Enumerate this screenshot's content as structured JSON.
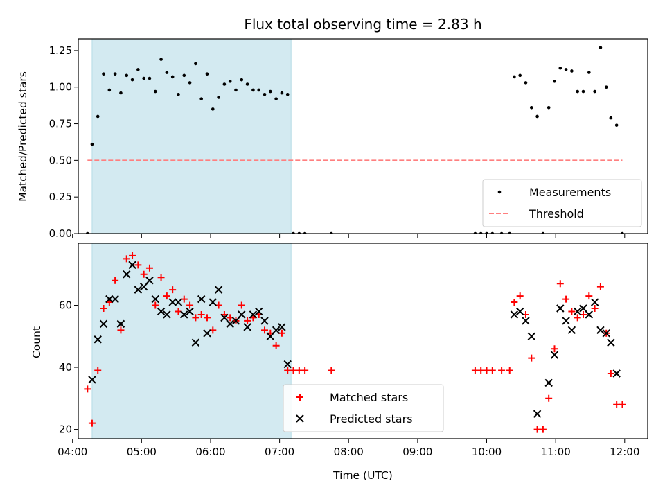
{
  "chart_data": [
    {
      "type": "scatter",
      "title": "Flux total observing time = 2.83 h",
      "xlabel": "",
      "ylabel": "Matched/Predicted stars",
      "xlim": [
        "04:05",
        "12:20"
      ],
      "ylim": [
        0,
        1.33
      ],
      "yticks": [
        "0.00",
        "0.25",
        "0.50",
        "0.75",
        "1.00",
        "1.25"
      ],
      "shaded_region": {
        "from": "04:17",
        "to": "07:10",
        "color": "#d3eaf1"
      },
      "grid": false,
      "legend": "lower-right",
      "series": [
        {
          "name": "Measurements",
          "marker": "dot",
          "color": "#000000",
          "points": [
            [
              "04:13",
              0.0
            ],
            [
              "04:17",
              0.61
            ],
            [
              "04:22",
              0.8
            ],
            [
              "04:27",
              1.09
            ],
            [
              "04:32",
              0.98
            ],
            [
              "04:37",
              1.09
            ],
            [
              "04:42",
              0.96
            ],
            [
              "04:47",
              1.08
            ],
            [
              "04:52",
              1.05
            ],
            [
              "04:57",
              1.12
            ],
            [
              "05:02",
              1.06
            ],
            [
              "05:07",
              1.06
            ],
            [
              "05:12",
              0.97
            ],
            [
              "05:17",
              1.19
            ],
            [
              "05:22",
              1.1
            ],
            [
              "05:27",
              1.07
            ],
            [
              "05:32",
              0.95
            ],
            [
              "05:37",
              1.08
            ],
            [
              "05:42",
              1.03
            ],
            [
              "05:47",
              1.16
            ],
            [
              "05:52",
              0.92
            ],
            [
              "05:57",
              1.09
            ],
            [
              "06:02",
              0.85
            ],
            [
              "06:07",
              0.93
            ],
            [
              "06:12",
              1.02
            ],
            [
              "06:17",
              1.04
            ],
            [
              "06:22",
              0.98
            ],
            [
              "06:27",
              1.05
            ],
            [
              "06:32",
              1.02
            ],
            [
              "06:37",
              0.98
            ],
            [
              "06:42",
              0.98
            ],
            [
              "06:47",
              0.95
            ],
            [
              "06:52",
              0.97
            ],
            [
              "06:57",
              0.92
            ],
            [
              "07:02",
              0.96
            ],
            [
              "07:07",
              0.95
            ],
            [
              "07:12",
              0.0
            ],
            [
              "07:17",
              0.0
            ],
            [
              "07:22",
              0.0
            ],
            [
              "07:45",
              0.0
            ],
            [
              "09:50",
              0.0
            ],
            [
              "09:55",
              0.0
            ],
            [
              "10:00",
              0.0
            ],
            [
              "10:05",
              0.0
            ],
            [
              "10:13",
              0.0
            ],
            [
              "10:20",
              0.0
            ],
            [
              "10:24",
              1.07
            ],
            [
              "10:29",
              1.08
            ],
            [
              "10:34",
              1.03
            ],
            [
              "10:39",
              0.86
            ],
            [
              "10:44",
              0.8
            ],
            [
              "10:49",
              0.0
            ],
            [
              "10:54",
              0.86
            ],
            [
              "10:59",
              1.04
            ],
            [
              "11:04",
              1.13
            ],
            [
              "11:09",
              1.12
            ],
            [
              "11:14",
              1.11
            ],
            [
              "11:19",
              0.97
            ],
            [
              "11:24",
              0.97
            ],
            [
              "11:29",
              1.1
            ],
            [
              "11:34",
              0.97
            ],
            [
              "11:39",
              1.27
            ],
            [
              "11:44",
              1.0
            ],
            [
              "11:48",
              0.79
            ],
            [
              "11:53",
              0.74
            ],
            [
              "11:58",
              0.0
            ]
          ]
        },
        {
          "name": "Threshold",
          "type": "line",
          "style": "dashed",
          "color": "#ff7f7f",
          "points": [
            [
              "04:13",
              0.5
            ],
            [
              "11:58",
              0.5
            ]
          ]
        }
      ]
    },
    {
      "type": "scatter",
      "title": "",
      "xlabel": "Time (UTC)",
      "ylabel": "Count",
      "xlim": [
        "04:05",
        "12:20"
      ],
      "ylim": [
        17,
        80
      ],
      "yticks": [
        "20",
        "40",
        "60"
      ],
      "xticks": [
        "04:00",
        "05:00",
        "06:00",
        "07:00",
        "08:00",
        "09:00",
        "10:00",
        "11:00",
        "12:00"
      ],
      "shaded_region": {
        "from": "04:17",
        "to": "07:10",
        "color": "#d3eaf1"
      },
      "grid": false,
      "legend": "lower-center",
      "series": [
        {
          "name": "Matched stars",
          "marker": "plus",
          "color": "#ff0000",
          "points": [
            [
              "04:13",
              33
            ],
            [
              "04:17",
              22
            ],
            [
              "04:22",
              39
            ],
            [
              "04:27",
              59
            ],
            [
              "04:32",
              61
            ],
            [
              "04:37",
              68
            ],
            [
              "04:42",
              52
            ],
            [
              "04:47",
              75
            ],
            [
              "04:52",
              76
            ],
            [
              "04:57",
              73
            ],
            [
              "05:02",
              70
            ],
            [
              "05:07",
              72
            ],
            [
              "05:12",
              60
            ],
            [
              "05:17",
              69
            ],
            [
              "05:22",
              63
            ],
            [
              "05:27",
              65
            ],
            [
              "05:32",
              58
            ],
            [
              "05:37",
              62
            ],
            [
              "05:42",
              60
            ],
            [
              "05:47",
              56
            ],
            [
              "05:52",
              57
            ],
            [
              "05:57",
              56
            ],
            [
              "06:02",
              52
            ],
            [
              "06:07",
              60
            ],
            [
              "06:12",
              57
            ],
            [
              "06:17",
              56
            ],
            [
              "06:22",
              55
            ],
            [
              "06:27",
              60
            ],
            [
              "06:32",
              55
            ],
            [
              "06:37",
              56
            ],
            [
              "06:42",
              57
            ],
            [
              "06:47",
              52
            ],
            [
              "06:52",
              51
            ],
            [
              "06:57",
              47
            ],
            [
              "07:02",
              51
            ],
            [
              "07:07",
              39
            ],
            [
              "07:12",
              39
            ],
            [
              "07:17",
              39
            ],
            [
              "07:22",
              39
            ],
            [
              "07:45",
              39
            ],
            [
              "09:50",
              39
            ],
            [
              "09:55",
              39
            ],
            [
              "10:00",
              39
            ],
            [
              "10:05",
              39
            ],
            [
              "10:13",
              39
            ],
            [
              "10:20",
              39
            ],
            [
              "10:24",
              61
            ],
            [
              "10:29",
              63
            ],
            [
              "10:34",
              57
            ],
            [
              "10:39",
              43
            ],
            [
              "10:44",
              20
            ],
            [
              "10:49",
              20
            ],
            [
              "10:54",
              30
            ],
            [
              "10:59",
              46
            ],
            [
              "11:04",
              67
            ],
            [
              "11:09",
              62
            ],
            [
              "11:14",
              58
            ],
            [
              "11:19",
              56
            ],
            [
              "11:24",
              57
            ],
            [
              "11:29",
              63
            ],
            [
              "11:34",
              59
            ],
            [
              "11:39",
              66
            ],
            [
              "11:44",
              51
            ],
            [
              "11:48",
              38
            ],
            [
              "11:53",
              28
            ],
            [
              "11:58",
              28
            ]
          ]
        },
        {
          "name": "Predicted stars",
          "marker": "x",
          "color": "#000000",
          "points": [
            [
              "04:17",
              36
            ],
            [
              "04:22",
              49
            ],
            [
              "04:27",
              54
            ],
            [
              "04:32",
              62
            ],
            [
              "04:37",
              62
            ],
            [
              "04:42",
              54
            ],
            [
              "04:47",
              70
            ],
            [
              "04:52",
              73
            ],
            [
              "04:57",
              65
            ],
            [
              "05:02",
              66
            ],
            [
              "05:07",
              68
            ],
            [
              "05:12",
              62
            ],
            [
              "05:17",
              58
            ],
            [
              "05:22",
              57
            ],
            [
              "05:27",
              61
            ],
            [
              "05:32",
              61
            ],
            [
              "05:37",
              57
            ],
            [
              "05:42",
              58
            ],
            [
              "05:47",
              48
            ],
            [
              "05:52",
              62
            ],
            [
              "05:57",
              51
            ],
            [
              "06:02",
              61
            ],
            [
              "06:07",
              65
            ],
            [
              "06:12",
              56
            ],
            [
              "06:17",
              54
            ],
            [
              "06:22",
              55
            ],
            [
              "06:27",
              57
            ],
            [
              "06:32",
              53
            ],
            [
              "06:37",
              57
            ],
            [
              "06:42",
              58
            ],
            [
              "06:47",
              55
            ],
            [
              "06:52",
              50
            ],
            [
              "06:57",
              52
            ],
            [
              "07:02",
              53
            ],
            [
              "07:07",
              41
            ],
            [
              "10:24",
              57
            ],
            [
              "10:29",
              58
            ],
            [
              "10:34",
              55
            ],
            [
              "10:39",
              50
            ],
            [
              "10:44",
              25
            ],
            [
              "10:54",
              35
            ],
            [
              "10:59",
              44
            ],
            [
              "11:04",
              59
            ],
            [
              "11:09",
              55
            ],
            [
              "11:14",
              52
            ],
            [
              "11:19",
              58
            ],
            [
              "11:24",
              59
            ],
            [
              "11:29",
              57
            ],
            [
              "11:34",
              61
            ],
            [
              "11:39",
              52
            ],
            [
              "11:44",
              51
            ],
            [
              "11:48",
              48
            ],
            [
              "11:53",
              38
            ]
          ]
        }
      ]
    }
  ]
}
